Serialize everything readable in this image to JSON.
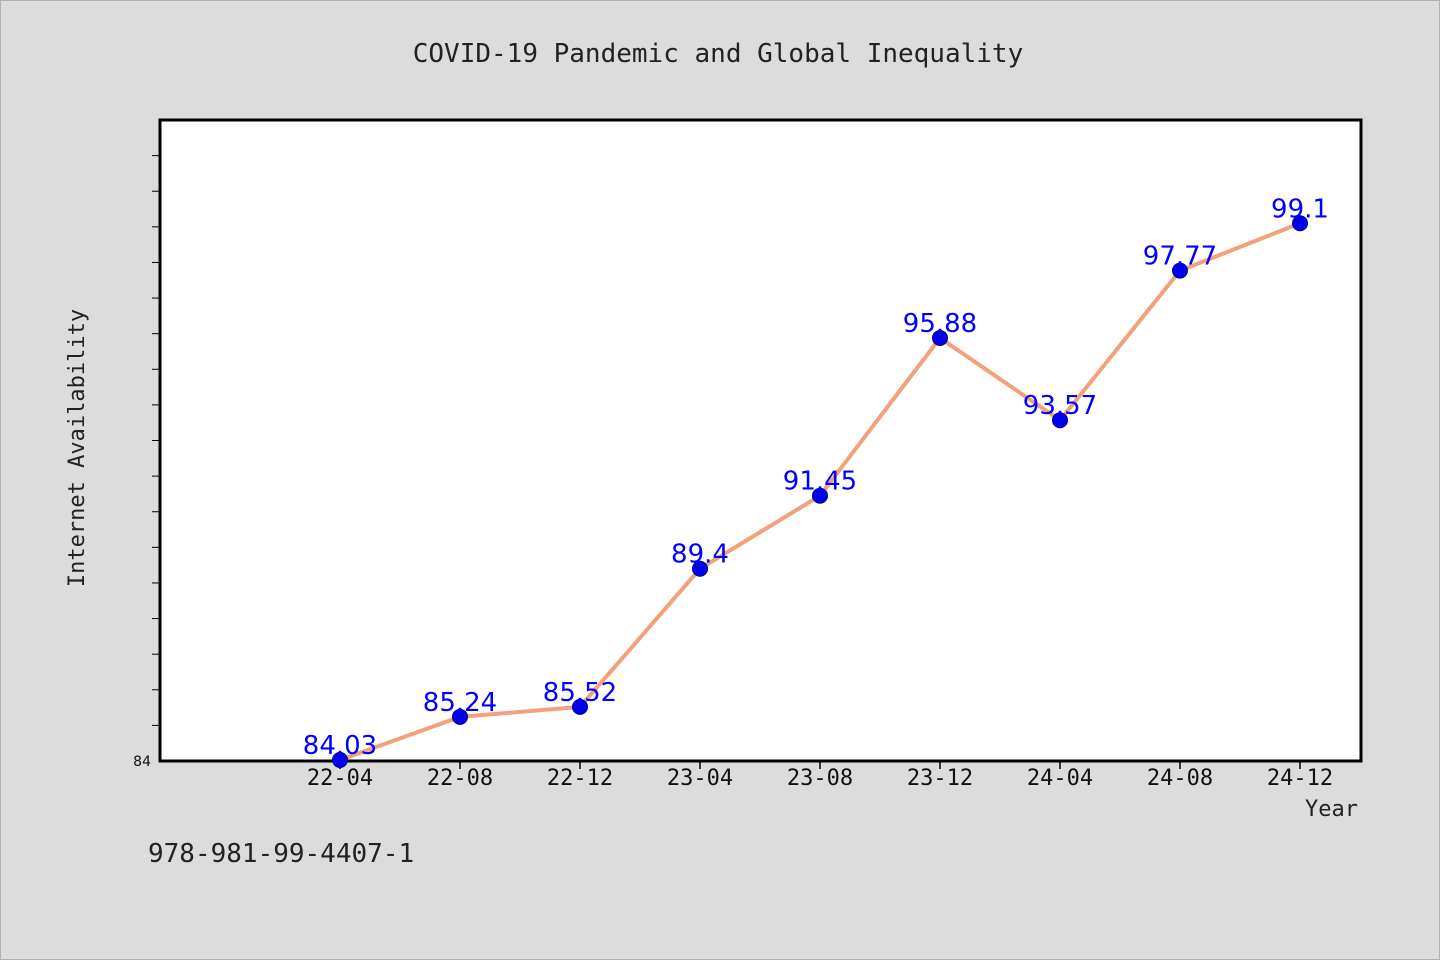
{
  "chart_data": {
    "type": "line",
    "title": "COVID-19 Pandemic and Global Inequality",
    "xlabel": "Year",
    "ylabel": "Internet Availability",
    "categories": [
      "22-04",
      "22-08",
      "22-12",
      "23-04",
      "23-08",
      "23-12",
      "24-04",
      "24-08",
      "24-12"
    ],
    "series": [
      {
        "values": [
          84.03,
          85.24,
          85.52,
          89.4,
          91.45,
          95.88,
          93.57,
          97.77,
          99.1
        ],
        "labels": [
          "84.03",
          "85.24",
          "85.52",
          "89.4",
          "91.45",
          "95.88",
          "93.57",
          "97.77",
          "99.1"
        ],
        "line_color": "#f4a07c",
        "marker_color": "#0000ee"
      }
    ],
    "ylim": [
      84,
      102
    ],
    "y_tick_label": "84",
    "grid": false,
    "legend": "none"
  },
  "footer": {
    "isbn": "978-981-99-4407-1"
  },
  "colors": {
    "background": "#dcdcdc",
    "plot_background": "#ffffff",
    "data_label": "#0000ff"
  }
}
